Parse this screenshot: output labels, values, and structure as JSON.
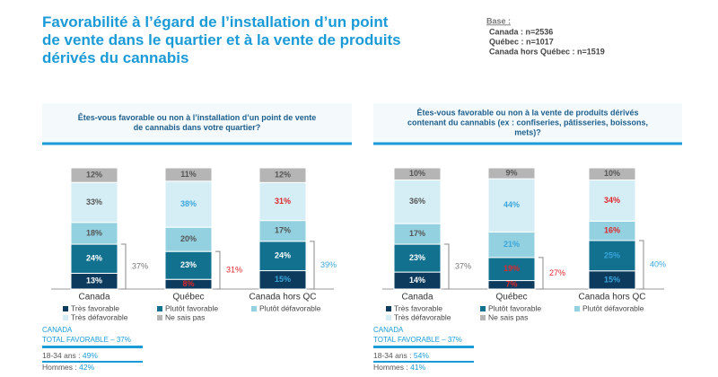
{
  "header": {
    "title": [
      "Favorabilité à l’égard de l’installation d’un point",
      "de vente dans le quartier et à la vente de produits",
      "dérivés du cannabis"
    ],
    "base": {
      "label": "Base :",
      "items": [
        "Canada : n=2536",
        "Québec : n=1017",
        "Canada hors Québec : n=1519"
      ]
    }
  },
  "chart_data": [
    {
      "type": "bar",
      "stacked": true,
      "title": [
        "Êtes-vous favorable ou non à l’installation d’un point de vente",
        "de cannabis dans votre quartier?"
      ],
      "categories": [
        "Canada",
        "Québec",
        "Canada hors QC"
      ],
      "series": [
        {
          "name": "Très favorable",
          "color": "#0d3b5e",
          "values": [
            13,
            8,
            15
          ],
          "value_labels": [
            "13%",
            "8%",
            "15%"
          ],
          "label_colors": [
            "#ffffff",
            "#e0262b",
            "#3aa6dc"
          ]
        },
        {
          "name": "Plutôt favorable",
          "color": "#11718f",
          "values": [
            24,
            23,
            24
          ],
          "value_labels": [
            "24%",
            "23%",
            "24%"
          ],
          "label_colors": [
            "#ffffff",
            "#ffffff",
            "#ffffff"
          ]
        },
        {
          "name": "Plutôt défavorable",
          "color": "#93d1e0",
          "values": [
            18,
            20,
            17
          ],
          "value_labels": [
            "18%",
            "20%",
            "17%"
          ],
          "label_colors": [
            "#555555",
            "#555555",
            "#555555"
          ]
        },
        {
          "name": "Très défavorable",
          "color": "#d5eef5",
          "values": [
            33,
            38,
            31
          ],
          "value_labels": [
            "33%",
            "38%",
            "31%"
          ],
          "label_colors": [
            "#555555",
            "#3aa6dc",
            "#e0262b"
          ]
        },
        {
          "name": "Ne sais pas",
          "color": "#b5b5b5",
          "values": [
            12,
            11,
            12
          ],
          "value_labels": [
            "12%",
            "11%",
            "12%"
          ],
          "label_colors": [
            "#555555",
            "#555555",
            "#555555"
          ]
        }
      ],
      "totals": {
        "values": [
          37,
          31,
          39
        ],
        "value_labels": [
          "37%",
          "31%",
          "39%"
        ],
        "colors": [
          "#777777",
          "#e0262b",
          "#3aa6dc"
        ]
      },
      "footer": {
        "region": "CANADA",
        "total": "TOTAL FAVORABLE – 37%",
        "lines": [
          {
            "label": "18-34 ans :",
            "value": "49%"
          },
          {
            "label": "Hommes :",
            "value": "42%"
          }
        ]
      }
    },
    {
      "type": "bar",
      "stacked": true,
      "title": [
        "Êtes-vous favorable ou non à la vente de produits dérivés",
        "contenant du cannabis (ex : confiseries, pâtisseries, boissons,",
        "mets)?"
      ],
      "categories": [
        "Canada",
        "Québec",
        "Canada hors QC"
      ],
      "series": [
        {
          "name": "Très favorable",
          "color": "#0d3b5e",
          "values": [
            14,
            7,
            15
          ],
          "value_labels": [
            "14%",
            "7%",
            "15%"
          ],
          "label_colors": [
            "#ffffff",
            "#e0262b",
            "#3aa6dc"
          ]
        },
        {
          "name": "Plutôt favorable",
          "color": "#11718f",
          "values": [
            23,
            19,
            25
          ],
          "value_labels": [
            "23%",
            "19%",
            "25%"
          ],
          "label_colors": [
            "#ffffff",
            "#e0262b",
            "#3aa6dc"
          ]
        },
        {
          "name": "Plutôt défavorable",
          "color": "#93d1e0",
          "values": [
            17,
            21,
            16
          ],
          "value_labels": [
            "17%",
            "21%",
            "16%"
          ],
          "label_colors": [
            "#555555",
            "#3aa6dc",
            "#e0262b"
          ]
        },
        {
          "name": "Très défavorable",
          "color": "#d5eef5",
          "values": [
            36,
            44,
            34
          ],
          "value_labels": [
            "36%",
            "44%",
            "34%"
          ],
          "label_colors": [
            "#555555",
            "#3aa6dc",
            "#e0262b"
          ]
        },
        {
          "name": "Ne sais pas",
          "color": "#b5b5b5",
          "values": [
            10,
            9,
            10
          ],
          "value_labels": [
            "10%",
            "9%",
            "10%"
          ],
          "label_colors": [
            "#555555",
            "#555555",
            "#555555"
          ]
        }
      ],
      "totals": {
        "values": [
          37,
          27,
          40
        ],
        "value_labels": [
          "37%",
          "27%",
          "40%"
        ],
        "colors": [
          "#777777",
          "#e0262b",
          "#3aa6dc"
        ]
      },
      "footer": {
        "region": "CANADA",
        "total": "TOTAL FAVORABLE – 37%",
        "lines": [
          {
            "label": "18-34 ans :",
            "value": "54%"
          },
          {
            "label": "Hommes :",
            "value": "41%"
          }
        ]
      }
    }
  ]
}
